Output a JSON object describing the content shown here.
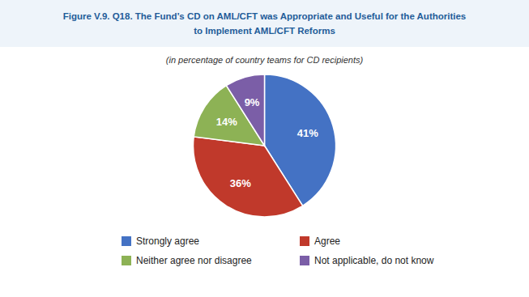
{
  "chart_data": {
    "type": "pie",
    "title": [
      "Figure V.9. Q18. The Fund’s CD on AML/CFT was Appropriate and Useful for the Authorities",
      "to Implement AML/CFT Reforms"
    ],
    "subtitle": "(in percentage of country teams for CD recipients)",
    "categories": [
      "Strongly agree",
      "Agree",
      "Neither agree nor disagree",
      "Not applicable, do not know"
    ],
    "values": [
      41,
      36,
      14,
      9
    ],
    "value_labels": [
      "41%",
      "36%",
      "14%",
      "9%"
    ],
    "colors": [
      "#4472C4",
      "#C0392B",
      "#8DB255",
      "#7B5EA7"
    ],
    "data_labels": true,
    "legend": "bottom"
  }
}
